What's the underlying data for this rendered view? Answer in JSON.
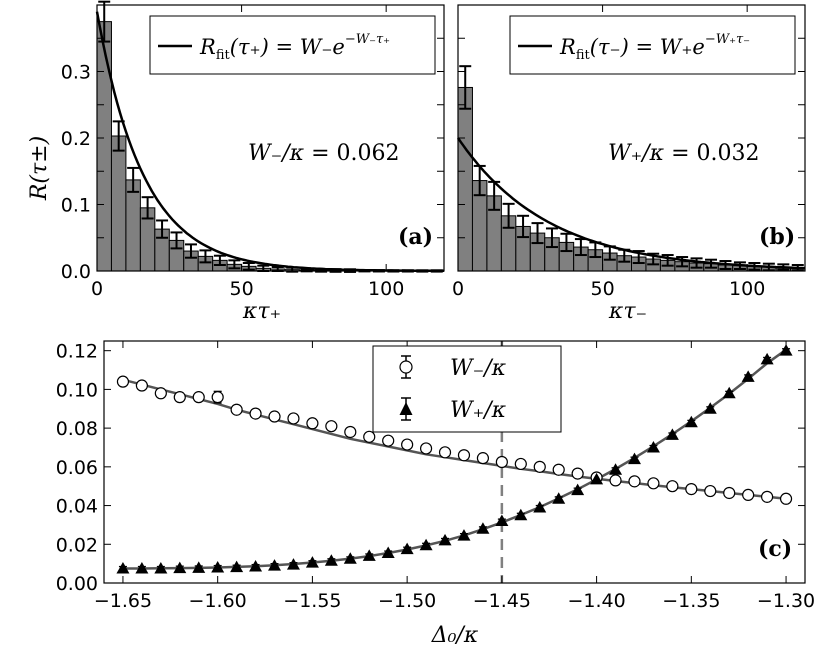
{
  "chart_data": [
    {
      "id": "a",
      "type": "bar",
      "panel_label": "(a)",
      "xlabel": "κτ₊",
      "ylabel": "R(τ±)",
      "xlim": [
        0,
        120
      ],
      "ylim": [
        0,
        0.4
      ],
      "xticks": [
        0,
        50,
        100
      ],
      "yticks": [
        0.0,
        0.1,
        0.2,
        0.3
      ],
      "ytick_labels": [
        "0.0",
        "0.1",
        "0.2",
        "0.3"
      ],
      "bin_width": 5,
      "values": [
        0.375,
        0.203,
        0.137,
        0.095,
        0.063,
        0.046,
        0.03,
        0.022,
        0.016,
        0.01,
        0.007,
        0.004,
        0.003,
        0.002,
        0.0015,
        0.001,
        0.0008,
        0.0006,
        0.0004,
        0.0003,
        0.0002,
        0.0002,
        0.0001,
        0.0001
      ],
      "errors": [
        0.03,
        0.022,
        0.018,
        0.016,
        0.013,
        0.012,
        0.01,
        0.009,
        0.007,
        0.006,
        0.005,
        0.004,
        0.003,
        0.003,
        0.002,
        0.002,
        0.002,
        0.002,
        0.001,
        0.001,
        0.001,
        0.001,
        0.001,
        0.001
      ],
      "fit": {
        "amplitude": 0.39,
        "rate": 0.062
      },
      "legend": {
        "main": "R",
        "sub": "fit",
        "lhs_arg": "(τ₊)",
        "rhs_prefix": " = W₋e",
        "sup": "−W₋τ₊"
      },
      "annotation": {
        "lhs": "W₋/κ",
        "value": " = 0.062"
      }
    },
    {
      "id": "b",
      "type": "bar",
      "panel_label": "(b)",
      "xlabel": "κτ₋",
      "xlim": [
        0,
        120
      ],
      "ylim": [
        0,
        0.4
      ],
      "xticks": [
        0,
        50,
        100
      ],
      "bin_width": 5,
      "values": [
        0.276,
        0.136,
        0.113,
        0.083,
        0.067,
        0.057,
        0.05,
        0.043,
        0.036,
        0.032,
        0.027,
        0.023,
        0.021,
        0.018,
        0.016,
        0.014,
        0.012,
        0.011,
        0.009,
        0.008,
        0.007,
        0.006,
        0.006,
        0.005
      ],
      "errors": [
        0.032,
        0.022,
        0.021,
        0.018,
        0.016,
        0.015,
        0.014,
        0.013,
        0.012,
        0.011,
        0.01,
        0.009,
        0.009,
        0.008,
        0.008,
        0.007,
        0.007,
        0.006,
        0.006,
        0.005,
        0.005,
        0.005,
        0.004,
        0.004
      ],
      "fit": {
        "amplitude": 0.2,
        "rate": 0.032
      },
      "legend": {
        "main": "R",
        "sub": "fit",
        "lhs_arg": "(τ₋)",
        "rhs_prefix": " = W₊e",
        "sup": "−W₊τ₋"
      },
      "annotation": {
        "lhs": "W₊/κ",
        "value": " = 0.032"
      }
    },
    {
      "id": "c",
      "type": "scatter",
      "panel_label": "(c)",
      "xlabel": "Δ₀/κ",
      "xlim": [
        -1.66,
        -1.29
      ],
      "ylim": [
        0.0,
        0.125
      ],
      "xticks": [
        -1.65,
        -1.6,
        -1.55,
        -1.5,
        -1.45,
        -1.4,
        -1.35,
        -1.3
      ],
      "xtick_labels": [
        "−1.65",
        "−1.60",
        "−1.55",
        "−1.50",
        "−1.45",
        "−1.40",
        "−1.35",
        "−1.30"
      ],
      "yticks": [
        0.0,
        0.02,
        0.04,
        0.06,
        0.08,
        0.1,
        0.12
      ],
      "ytick_labels": [
        "0.00",
        "0.02",
        "0.04",
        "0.06",
        "0.08",
        "0.10",
        "0.12"
      ],
      "vline_x": -1.45,
      "x": [
        -1.65,
        -1.64,
        -1.63,
        -1.62,
        -1.61,
        -1.6,
        -1.59,
        -1.58,
        -1.57,
        -1.56,
        -1.55,
        -1.54,
        -1.53,
        -1.52,
        -1.51,
        -1.5,
        -1.49,
        -1.48,
        -1.47,
        -1.46,
        -1.45,
        -1.44,
        -1.43,
        -1.42,
        -1.41,
        -1.4,
        -1.39,
        -1.38,
        -1.37,
        -1.36,
        -1.35,
        -1.34,
        -1.33,
        -1.32,
        -1.31,
        -1.3
      ],
      "series": [
        {
          "name": "W₋/κ",
          "marker": "circle-open",
          "values": [
            0.104,
            0.102,
            0.098,
            0.096,
            0.096,
            0.096,
            0.0895,
            0.0875,
            0.086,
            0.085,
            0.0825,
            0.081,
            0.078,
            0.0755,
            0.0735,
            0.0715,
            0.0695,
            0.0675,
            0.066,
            0.0645,
            0.0625,
            0.0615,
            0.06,
            0.0585,
            0.0565,
            0.0545,
            0.053,
            0.0525,
            0.0515,
            0.05,
            0.0485,
            0.0475,
            0.0465,
            0.0455,
            0.0445,
            0.0435
          ],
          "errors": [
            0.002,
            0.002,
            0.002,
            0.002,
            0.002,
            0.003,
            0.0015,
            0.0015,
            0.0015,
            0.0015,
            0.0015,
            0.0015,
            0.0012,
            0.0012,
            0.0012,
            0.0012,
            0.001,
            0.001,
            0.001,
            0.001,
            0.001,
            0.001,
            0.001,
            0.001,
            0.001,
            0.001,
            0.001,
            0.001,
            0.001,
            0.001,
            0.001,
            0.001,
            0.001,
            0.001,
            0.001,
            0.001
          ],
          "fit": [
            0.105,
            0.1025,
            0.1,
            0.0975,
            0.095,
            0.0925,
            0.0895,
            0.087,
            0.0845,
            0.082,
            0.0795,
            0.077,
            0.0745,
            0.0725,
            0.0705,
            0.0685,
            0.0665,
            0.065,
            0.0635,
            0.062,
            0.0605,
            0.059,
            0.0577,
            0.0563,
            0.055,
            0.0538,
            0.0527,
            0.0516,
            0.0505,
            0.0495,
            0.0485,
            0.0475,
            0.0465,
            0.0455,
            0.0445,
            0.0435
          ]
        },
        {
          "name": "W₊/κ",
          "marker": "triangle-filled",
          "values": [
            0.0075,
            0.0075,
            0.0075,
            0.0077,
            0.0078,
            0.008,
            0.0082,
            0.0085,
            0.009,
            0.0095,
            0.0105,
            0.0115,
            0.0125,
            0.014,
            0.0155,
            0.0175,
            0.0195,
            0.022,
            0.0245,
            0.028,
            0.032,
            0.035,
            0.039,
            0.0435,
            0.048,
            0.0535,
            0.0585,
            0.064,
            0.07,
            0.0765,
            0.083,
            0.09,
            0.098,
            0.1065,
            0.1155,
            0.12
          ],
          "errors": [
            0.001,
            0.001,
            0.001,
            0.001,
            0.001,
            0.001,
            0.001,
            0.001,
            0.001,
            0.001,
            0.001,
            0.001,
            0.001,
            0.001,
            0.001,
            0.001,
            0.001,
            0.001,
            0.001,
            0.001,
            0.001,
            0.001,
            0.001,
            0.001,
            0.001,
            0.001,
            0.001,
            0.001,
            0.001,
            0.001,
            0.001,
            0.001,
            0.001,
            0.001,
            0.001,
            0.001
          ],
          "fit": [
            0.0075,
            0.0075,
            0.0076,
            0.0077,
            0.0078,
            0.008,
            0.0083,
            0.0087,
            0.0092,
            0.0098,
            0.0106,
            0.0115,
            0.0126,
            0.0139,
            0.0155,
            0.0173,
            0.0194,
            0.0218,
            0.0246,
            0.0278,
            0.0313,
            0.0351,
            0.0392,
            0.0437,
            0.0484,
            0.0535,
            0.0589,
            0.0646,
            0.0706,
            0.0769,
            0.0835,
            0.0905,
            0.0978,
            0.1055,
            0.1135,
            0.1205
          ]
        }
      ]
    }
  ],
  "colors": {
    "bar_fill": "#808080",
    "fit_line_ab": "#000000",
    "fit_line_c": "#555555",
    "vline": "#808080",
    "marker_filled": "#000000"
  }
}
